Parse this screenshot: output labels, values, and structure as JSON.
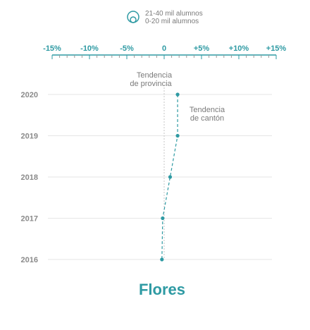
{
  "legend": {
    "item_large": "21-40 mil alumnos",
    "item_small": "0-20 mil alumnos"
  },
  "colors": {
    "accent": "#2e9aa3",
    "muted": "#8a8a8a",
    "grid": "#e6e6e6"
  },
  "chart_data": {
    "type": "scatter",
    "title": "Flores",
    "xlim": [
      -15,
      15
    ],
    "xticks": [
      -15,
      -10,
      -5,
      0,
      5,
      10,
      15
    ],
    "xtick_labels": [
      "-15%",
      "-10%",
      "-5%",
      "0",
      "+5%",
      "+10%",
      "+15%"
    ],
    "years": [
      "2020",
      "2019",
      "2018",
      "2017",
      "2016"
    ],
    "series": [
      {
        "x": [
          1.8,
          1.8,
          0.8,
          -0.2,
          -0.3
        ],
        "y": [
          "2020",
          "2019",
          "2018",
          "2017",
          "2016"
        ]
      }
    ],
    "annotations": {
      "province_trend": [
        "Tendencia",
        "de provincia"
      ],
      "canton_trend": [
        "Tendencia",
        "de cantón"
      ]
    }
  }
}
